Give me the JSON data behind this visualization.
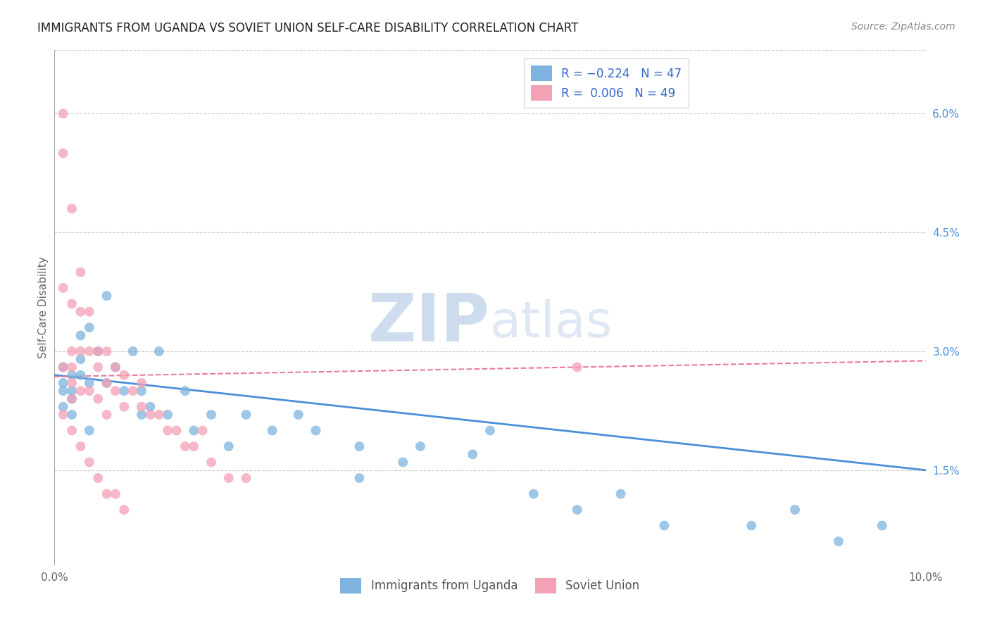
{
  "title": "IMMIGRANTS FROM UGANDA VS SOVIET UNION SELF-CARE DISABILITY CORRELATION CHART",
  "source": "Source: ZipAtlas.com",
  "ylabel": "Self-Care Disability",
  "right_yticks": [
    "6.0%",
    "4.5%",
    "3.0%",
    "1.5%"
  ],
  "right_ytick_vals": [
    0.06,
    0.045,
    0.03,
    0.015
  ],
  "xlim": [
    0.0,
    0.1
  ],
  "ylim": [
    0.003,
    0.068
  ],
  "uganda_color": "#7eb3e0",
  "soviet_color": "#f4a0b5",
  "uganda_line_color": "#4a90d9",
  "soviet_line_color": "#e87a9a",
  "watermark": "ZIPatlas",
  "uganda_R": -0.224,
  "uganda_N": 47,
  "soviet_R": 0.006,
  "soviet_N": 49,
  "uganda_line_x0": 0.0,
  "uganda_line_y0": 0.027,
  "uganda_line_x1": 0.1,
  "uganda_line_y1": 0.015,
  "soviet_line_x0": 0.0,
  "soviet_line_y0": 0.0268,
  "soviet_line_x1": 0.1,
  "soviet_line_y1": 0.0288,
  "uganda_scatter_x": [
    0.001,
    0.001,
    0.001,
    0.002,
    0.002,
    0.002,
    0.003,
    0.003,
    0.003,
    0.004,
    0.004,
    0.005,
    0.006,
    0.007,
    0.008,
    0.009,
    0.01,
    0.01,
    0.011,
    0.012,
    0.013,
    0.015,
    0.016,
    0.018,
    0.02,
    0.022,
    0.025,
    0.028,
    0.03,
    0.035,
    0.04,
    0.042,
    0.048,
    0.05,
    0.055,
    0.06,
    0.065,
    0.07,
    0.08,
    0.085,
    0.09,
    0.095,
    0.001,
    0.002,
    0.004,
    0.006,
    0.035
  ],
  "uganda_scatter_y": [
    0.025,
    0.026,
    0.028,
    0.027,
    0.024,
    0.025,
    0.032,
    0.029,
    0.027,
    0.033,
    0.026,
    0.03,
    0.037,
    0.028,
    0.025,
    0.03,
    0.022,
    0.025,
    0.023,
    0.03,
    0.022,
    0.025,
    0.02,
    0.022,
    0.018,
    0.022,
    0.02,
    0.022,
    0.02,
    0.018,
    0.016,
    0.018,
    0.017,
    0.02,
    0.012,
    0.01,
    0.012,
    0.008,
    0.008,
    0.01,
    0.006,
    0.008,
    0.023,
    0.022,
    0.02,
    0.026,
    0.014
  ],
  "soviet_scatter_x": [
    0.001,
    0.001,
    0.001,
    0.001,
    0.002,
    0.002,
    0.002,
    0.002,
    0.002,
    0.002,
    0.003,
    0.003,
    0.003,
    0.003,
    0.004,
    0.004,
    0.004,
    0.005,
    0.005,
    0.005,
    0.006,
    0.006,
    0.006,
    0.007,
    0.007,
    0.008,
    0.008,
    0.009,
    0.01,
    0.01,
    0.011,
    0.012,
    0.013,
    0.014,
    0.015,
    0.016,
    0.017,
    0.018,
    0.02,
    0.022,
    0.001,
    0.002,
    0.003,
    0.004,
    0.005,
    0.006,
    0.007,
    0.008,
    0.06
  ],
  "soviet_scatter_y": [
    0.06,
    0.055,
    0.038,
    0.028,
    0.048,
    0.036,
    0.03,
    0.028,
    0.026,
    0.024,
    0.04,
    0.035,
    0.03,
    0.025,
    0.035,
    0.03,
    0.025,
    0.03,
    0.028,
    0.024,
    0.03,
    0.026,
    0.022,
    0.028,
    0.025,
    0.027,
    0.023,
    0.025,
    0.026,
    0.023,
    0.022,
    0.022,
    0.02,
    0.02,
    0.018,
    0.018,
    0.02,
    0.016,
    0.014,
    0.014,
    0.022,
    0.02,
    0.018,
    0.016,
    0.014,
    0.012,
    0.012,
    0.01,
    0.028
  ]
}
